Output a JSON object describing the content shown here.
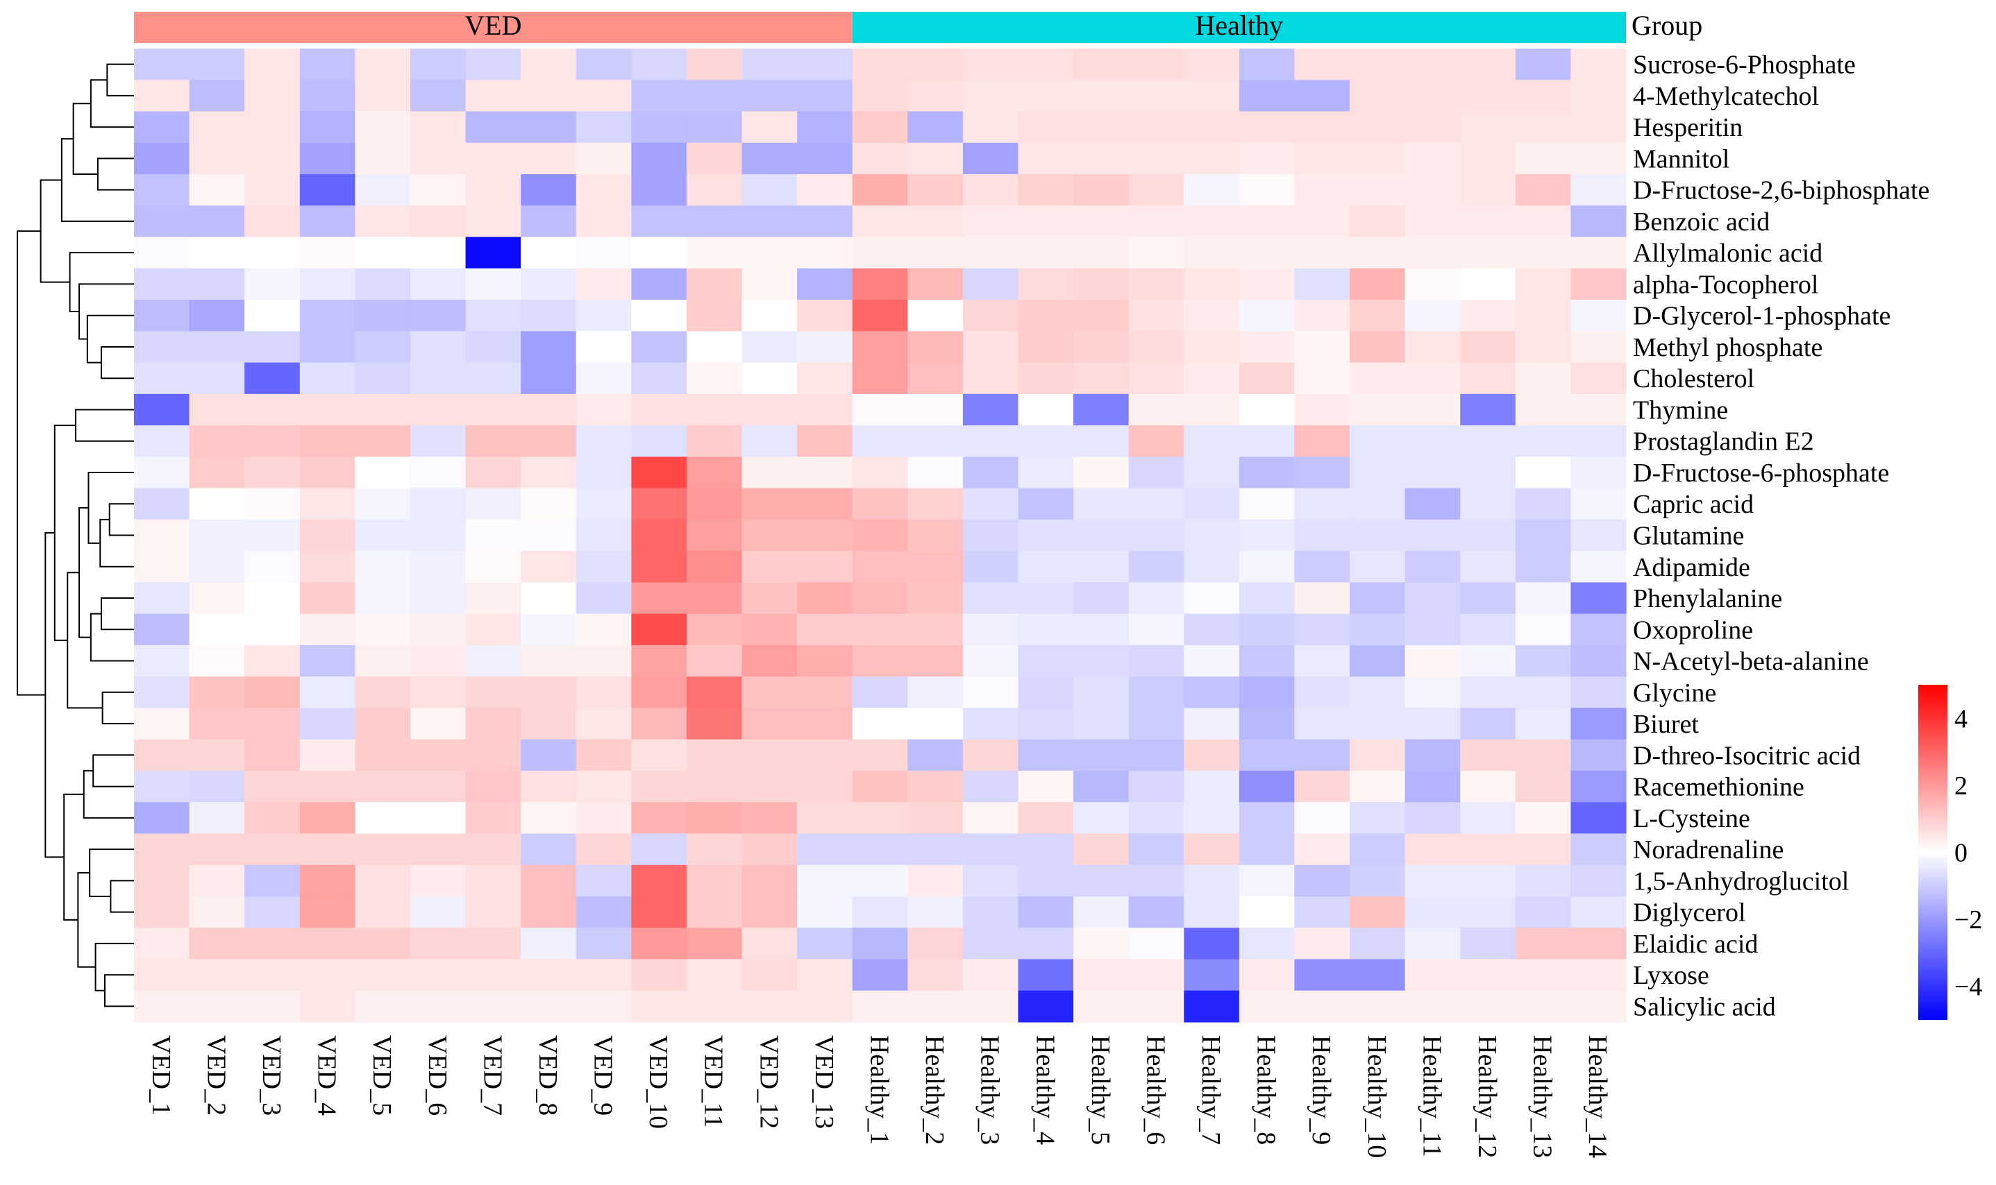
{
  "chart_data": {
    "type": "heatmap",
    "title": "",
    "group_label": "Group",
    "groups": [
      {
        "name": "VED",
        "count": 13,
        "color": "#FF9188"
      },
      {
        "name": "Healthy",
        "count": 14,
        "color": "#00D9DF"
      }
    ],
    "columns": [
      "VED_1",
      "VED_2",
      "VED_3",
      "VED_4",
      "VED_5",
      "VED_6",
      "VED_7",
      "VED_8",
      "VED_9",
      "VED_10",
      "VED_11",
      "VED_12",
      "VED_13",
      "Healthy_1",
      "Healthy_2",
      "Healthy_3",
      "Healthy_4",
      "Healthy_5",
      "Healthy_6",
      "Healthy_7",
      "Healthy_8",
      "Healthy_9",
      "Healthy_10",
      "Healthy_11",
      "Healthy_12",
      "Healthy_13",
      "Healthy_14"
    ],
    "rows": [
      "Sucrose-6-Phosphate",
      "4-Methylcatechol",
      "Hesperitin",
      "Mannitol",
      "D-Fructose-2,6-biphosphate",
      "Benzoic acid",
      "Allylmalonic acid",
      "alpha-Tocopherol",
      "D-Glycerol-1-phosphate",
      "Methyl phosphate",
      "Cholesterol",
      "Thymine",
      "Prostaglandin E2",
      "D-Fructose-6-phosphate",
      "Capric acid",
      "Glutamine",
      "Adipamide",
      "Phenylalanine",
      "Oxoproline",
      "N-Acetyl-beta-alanine",
      "Glycine",
      "Biuret",
      "D-threo-Isocitric acid",
      "Racemethionine",
      "L-Cysteine",
      "Noradrenaline",
      "1,5-Anhydroglucitol",
      "Diglycerol",
      "Elaidic acid",
      "Lyxose",
      "Salicylic acid"
    ],
    "values": [
      [
        -1.0,
        -1.0,
        0.5,
        -1.2,
        0.5,
        -1.0,
        -0.8,
        0.5,
        -1.0,
        -0.8,
        0.8,
        -0.8,
        -0.8,
        0.7,
        0.7,
        0.6,
        0.6,
        0.7,
        0.7,
        0.6,
        -1.2,
        0.6,
        0.6,
        0.6,
        0.6,
        -1.3,
        0.5
      ],
      [
        0.5,
        -1.3,
        0.5,
        -1.3,
        0.5,
        -1.2,
        0.5,
        0.5,
        0.5,
        -1.2,
        -1.2,
        -1.2,
        -1.2,
        0.7,
        0.6,
        0.5,
        0.5,
        0.5,
        0.5,
        0.5,
        -1.5,
        -1.5,
        0.6,
        0.6,
        0.6,
        0.6,
        0.5
      ],
      [
        -1.5,
        0.5,
        0.5,
        -1.5,
        0.3,
        0.5,
        -1.4,
        -1.4,
        -0.8,
        -1.3,
        -1.3,
        0.5,
        -1.5,
        1.0,
        -1.5,
        0.5,
        0.6,
        0.6,
        0.6,
        0.6,
        0.6,
        0.6,
        0.6,
        0.6,
        0.5,
        0.5,
        0.5
      ],
      [
        -1.8,
        0.5,
        0.5,
        -1.8,
        0.3,
        0.5,
        0.5,
        0.5,
        0.3,
        -1.8,
        0.8,
        -1.6,
        -1.6,
        0.6,
        0.5,
        -1.8,
        0.5,
        0.5,
        0.5,
        0.5,
        0.4,
        0.5,
        0.5,
        0.4,
        0.5,
        0.3,
        0.3
      ],
      [
        -1.2,
        0.2,
        0.5,
        -3.0,
        -0.3,
        0.2,
        0.5,
        -2.2,
        0.5,
        -1.8,
        0.6,
        -0.6,
        0.4,
        1.6,
        1.0,
        0.6,
        0.9,
        1.0,
        0.7,
        -0.2,
        0.1,
        0.4,
        0.4,
        0.4,
        0.5,
        1.1,
        -0.3
      ],
      [
        -1.3,
        -1.3,
        0.6,
        -1.3,
        0.5,
        0.6,
        0.5,
        -1.3,
        0.5,
        -1.2,
        -1.2,
        -1.2,
        -1.2,
        0.5,
        0.5,
        0.4,
        0.4,
        0.4,
        0.4,
        0.4,
        0.4,
        0.4,
        0.6,
        0.4,
        0.4,
        0.4,
        -1.4
      ],
      [
        -0.1,
        0.0,
        0.0,
        0.1,
        0.0,
        0.0,
        -4.8,
        0.0,
        -0.1,
        0.0,
        0.2,
        0.2,
        0.2,
        0.3,
        0.3,
        0.3,
        0.3,
        0.3,
        0.2,
        0.3,
        0.3,
        0.3,
        0.3,
        0.3,
        0.3,
        0.3,
        0.3
      ],
      [
        -0.8,
        -0.8,
        -0.2,
        -0.4,
        -0.7,
        -0.4,
        -0.2,
        -0.4,
        0.4,
        -1.6,
        1.0,
        0.2,
        -1.5,
        2.5,
        1.4,
        -0.8,
        0.7,
        0.8,
        0.7,
        0.5,
        0.4,
        -0.6,
        1.5,
        0.1,
        0.0,
        0.5,
        1.1
      ],
      [
        -1.3,
        -1.7,
        0.0,
        -1.2,
        -1.3,
        -1.3,
        -0.6,
        -0.7,
        -0.4,
        0.0,
        1.0,
        0.0,
        0.7,
        3.0,
        0.0,
        0.8,
        1.0,
        1.0,
        0.6,
        0.4,
        -0.2,
        0.4,
        0.9,
        -0.2,
        0.4,
        0.5,
        -0.2
      ],
      [
        -0.8,
        -0.8,
        -0.8,
        -1.2,
        -1.0,
        -0.6,
        -0.8,
        -1.9,
        0.0,
        -1.2,
        0.0,
        -0.4,
        -0.3,
        1.9,
        1.4,
        0.6,
        1.0,
        0.9,
        0.7,
        0.5,
        0.4,
        0.2,
        1.2,
        0.5,
        0.8,
        0.5,
        0.3
      ],
      [
        -0.6,
        -0.6,
        -3.0,
        -0.6,
        -0.8,
        -0.6,
        -0.6,
        -1.9,
        -0.2,
        -0.8,
        0.2,
        0.0,
        0.5,
        1.9,
        1.3,
        0.6,
        0.8,
        0.7,
        0.6,
        0.4,
        0.8,
        0.2,
        0.4,
        0.4,
        0.6,
        0.3,
        0.6
      ],
      [
        -3.0,
        0.6,
        0.6,
        0.6,
        0.6,
        0.6,
        0.6,
        0.6,
        0.4,
        0.6,
        0.6,
        0.6,
        0.6,
        0.1,
        0.1,
        -2.5,
        0.0,
        -2.5,
        0.3,
        0.3,
        0.0,
        0.4,
        0.3,
        0.3,
        -2.5,
        0.3,
        0.3
      ],
      [
        -0.5,
        1.1,
        1.1,
        1.2,
        1.2,
        -0.6,
        1.2,
        1.2,
        -0.5,
        -0.6,
        1.0,
        -0.5,
        1.2,
        -0.5,
        -0.5,
        -0.5,
        -0.5,
        -0.5,
        1.2,
        -0.5,
        -0.5,
        1.3,
        -0.5,
        -0.5,
        -0.5,
        -0.5,
        -0.5
      ],
      [
        -0.2,
        1.0,
        0.8,
        1.0,
        0.0,
        -0.1,
        0.8,
        0.5,
        -0.5,
        3.6,
        1.9,
        0.3,
        0.3,
        0.5,
        -0.1,
        -1.2,
        -0.4,
        0.2,
        -0.8,
        -0.5,
        -1.3,
        -1.2,
        -0.5,
        -0.5,
        -0.5,
        0.0,
        -0.3
      ],
      [
        -0.8,
        0.0,
        0.1,
        0.5,
        -0.2,
        -0.4,
        -0.3,
        0.1,
        -0.4,
        2.8,
        2.0,
        1.6,
        1.6,
        1.2,
        0.9,
        -0.6,
        -1.2,
        -0.5,
        -0.5,
        -0.6,
        -0.1,
        -0.5,
        -0.5,
        -1.5,
        -0.5,
        -0.8,
        -0.2
      ],
      [
        0.2,
        -0.3,
        -0.3,
        0.8,
        -0.4,
        -0.4,
        -0.1,
        -0.1,
        -0.5,
        3.0,
        1.9,
        1.4,
        1.4,
        1.5,
        1.2,
        -0.8,
        -0.6,
        -0.6,
        -0.6,
        -0.5,
        -0.4,
        -0.6,
        -0.6,
        -0.6,
        -0.6,
        -1.0,
        -0.5
      ],
      [
        0.2,
        -0.3,
        -0.1,
        0.7,
        -0.2,
        -0.3,
        0.1,
        0.5,
        -0.6,
        3.0,
        2.2,
        1.0,
        1.0,
        1.3,
        1.3,
        -0.9,
        -0.5,
        -0.5,
        -0.9,
        -0.5,
        -0.2,
        -1.0,
        -0.5,
        -1.0,
        -0.5,
        -1.0,
        -0.2
      ],
      [
        -0.5,
        0.2,
        0.0,
        1.0,
        -0.2,
        -0.3,
        0.3,
        0.0,
        -0.8,
        2.0,
        2.0,
        1.2,
        1.6,
        1.4,
        1.2,
        -0.6,
        -0.6,
        -0.8,
        -0.4,
        -0.1,
        -0.6,
        0.3,
        -1.2,
        -0.8,
        -1.0,
        -0.2,
        -2.5
      ],
      [
        -1.3,
        0.0,
        0.0,
        0.3,
        0.2,
        0.3,
        0.5,
        -0.2,
        0.2,
        3.5,
        1.4,
        1.5,
        1.0,
        1.0,
        1.0,
        -0.3,
        -0.4,
        -0.4,
        -0.2,
        -0.8,
        -0.9,
        -0.8,
        -0.9,
        -0.8,
        -0.6,
        -0.1,
        -1.2
      ],
      [
        -0.4,
        0.1,
        0.5,
        -1.1,
        0.3,
        0.4,
        -0.3,
        0.3,
        0.3,
        1.8,
        1.1,
        1.9,
        1.6,
        1.3,
        1.3,
        -0.2,
        -0.7,
        -0.7,
        -0.8,
        -0.2,
        -1.1,
        -0.4,
        -1.4,
        0.2,
        -0.2,
        -0.9,
        -1.3
      ],
      [
        -0.6,
        1.2,
        1.4,
        -0.4,
        0.8,
        0.6,
        0.8,
        0.8,
        0.6,
        1.9,
        2.8,
        1.2,
        1.2,
        -0.8,
        -0.3,
        -0.1,
        -0.8,
        -0.6,
        -1.0,
        -1.2,
        -1.5,
        -0.6,
        -0.5,
        -0.2,
        -0.5,
        -0.5,
        -0.8
      ],
      [
        0.2,
        1.1,
        1.1,
        -0.8,
        1.0,
        0.2,
        1.0,
        0.8,
        0.5,
        1.4,
        2.7,
        1.3,
        1.3,
        0.0,
        0.0,
        -0.6,
        -0.7,
        -0.6,
        -1.0,
        -0.3,
        -1.4,
        -0.5,
        -0.5,
        -0.5,
        -1.0,
        -0.4,
        -2.0
      ],
      [
        0.8,
        0.8,
        1.1,
        0.4,
        1.0,
        1.0,
        1.0,
        -1.3,
        1.0,
        0.6,
        0.8,
        0.8,
        0.8,
        0.8,
        -1.3,
        0.8,
        -1.2,
        -1.2,
        -1.2,
        0.8,
        -1.2,
        -1.2,
        0.6,
        -1.4,
        0.8,
        0.8,
        -1.4
      ],
      [
        -0.7,
        -0.8,
        0.8,
        0.8,
        0.8,
        0.8,
        1.1,
        0.6,
        0.5,
        0.8,
        0.8,
        0.8,
        0.8,
        1.2,
        1.0,
        -0.8,
        0.2,
        -1.4,
        -0.8,
        -0.4,
        -2.2,
        0.8,
        0.2,
        -1.5,
        0.2,
        0.8,
        -2.0
      ],
      [
        -1.6,
        -0.3,
        1.0,
        1.6,
        0.0,
        0.0,
        1.0,
        0.2,
        0.4,
        1.5,
        1.6,
        1.5,
        0.7,
        0.7,
        0.8,
        0.2,
        0.8,
        -0.4,
        -0.6,
        -0.4,
        -1.0,
        -0.1,
        -0.6,
        -0.8,
        -0.4,
        0.2,
        -3.0
      ],
      [
        0.8,
        0.8,
        0.8,
        0.8,
        0.8,
        0.8,
        0.8,
        -1.0,
        0.8,
        -0.8,
        0.8,
        1.0,
        -0.8,
        -0.8,
        -0.8,
        -0.8,
        -0.8,
        0.8,
        -1.0,
        0.8,
        -1.0,
        0.4,
        -1.0,
        0.6,
        0.6,
        0.6,
        -1.0
      ],
      [
        0.8,
        0.4,
        -1.1,
        1.8,
        0.6,
        0.4,
        0.6,
        1.3,
        -0.8,
        3.0,
        1.0,
        1.3,
        -0.2,
        -0.2,
        0.4,
        -0.6,
        -0.8,
        -0.8,
        -0.8,
        -0.5,
        -0.2,
        -1.2,
        -0.9,
        -0.4,
        -0.4,
        -0.6,
        -0.8
      ],
      [
        0.8,
        0.3,
        -0.8,
        1.8,
        0.6,
        -0.3,
        0.6,
        1.3,
        -1.3,
        3.0,
        1.0,
        1.3,
        -0.2,
        -0.5,
        -0.3,
        -0.8,
        -1.3,
        -0.3,
        -1.3,
        -0.5,
        0.0,
        -0.8,
        1.2,
        -0.5,
        -0.5,
        -0.8,
        -0.5
      ],
      [
        0.4,
        1.0,
        1.0,
        1.0,
        1.0,
        0.8,
        0.8,
        -0.3,
        -1.0,
        2.0,
        1.8,
        0.6,
        -1.0,
        -1.4,
        0.8,
        -0.8,
        -0.8,
        0.2,
        -0.1,
        -3.0,
        -0.5,
        0.4,
        -0.8,
        -0.3,
        -0.8,
        1.1,
        1.1
      ],
      [
        0.5,
        0.5,
        0.5,
        0.5,
        0.5,
        0.5,
        0.5,
        0.5,
        0.5,
        0.8,
        0.5,
        0.7,
        0.5,
        -1.8,
        0.7,
        0.4,
        -2.8,
        0.4,
        0.4,
        -2.3,
        0.4,
        -2.2,
        -2.2,
        0.4,
        0.4,
        0.4,
        0.4
      ],
      [
        0.3,
        0.3,
        0.3,
        0.5,
        0.3,
        0.3,
        0.3,
        0.3,
        0.3,
        0.5,
        0.5,
        0.5,
        0.5,
        0.3,
        0.3,
        0.3,
        -4.3,
        0.3,
        0.3,
        -4.3,
        0.3,
        0.3,
        0.3,
        0.3,
        0.3,
        0.3,
        0.3
      ]
    ],
    "color_scale": {
      "min": -5,
      "max": 5,
      "low": "#0000FF",
      "mid": "#FFFFFF",
      "high": "#FF0000"
    },
    "legend_ticks": [
      4,
      2,
      0,
      -2,
      -4
    ],
    "legend_tick_labels": [
      "4",
      "2",
      "0",
      "−2",
      "−4"
    ],
    "legend_placement": "right",
    "row_dendrogram": true
  }
}
